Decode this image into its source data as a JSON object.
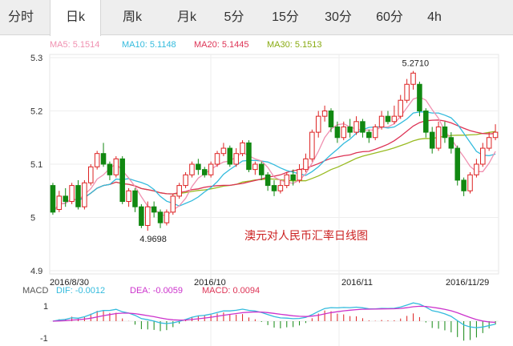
{
  "tabs": [
    {
      "label": "分时",
      "active": false
    },
    {
      "label": "日k",
      "active": true
    },
    {
      "label": "周k",
      "active": false
    },
    {
      "label": "月k",
      "active": false
    },
    {
      "label": "5分",
      "active": false
    },
    {
      "label": "15分",
      "active": false
    },
    {
      "label": "30分",
      "active": false
    },
    {
      "label": "60分",
      "active": false
    },
    {
      "label": "4h",
      "active": false
    }
  ],
  "legend": {
    "ma5": "MA5: 5.1514",
    "ma10": "MA10: 5.1148",
    "ma20": "MA20: 5.1445",
    "ma30": "MA30: 5.1513"
  },
  "macd_legend": {
    "title": "MACD",
    "dif": "DIF: -0.0012",
    "dea": "DEA: -0.0059",
    "macd": "MACD: 0.0094"
  },
  "chart_title": "澳元对人民币汇率日线图",
  "colors": {
    "up": "#dd2222",
    "down": "#118811",
    "ma5": "#f090b0",
    "ma10": "#33bbdd",
    "ma20": "#dd3355",
    "ma30": "#99bb22",
    "dif": "#33bbdd",
    "dea": "#cc33cc"
  },
  "chart_data": {
    "type": "candlestick",
    "y_ticks": [
      "5.3",
      "5.2",
      "5.1",
      "5",
      "4.9"
    ],
    "ylim": [
      4.9,
      5.3
    ],
    "x_labels": [
      "2016/8/30",
      "2016/10",
      "2016/11",
      "2016/11/29"
    ],
    "annotations": {
      "high": "5.2710",
      "low": "4.9698"
    },
    "candles": [
      [
        5.06,
        5.01,
        5.065,
        5.005
      ],
      [
        5.015,
        5.04,
        5.05,
        5.01
      ],
      [
        5.04,
        5.03,
        5.055,
        5.02
      ],
      [
        5.03,
        5.06,
        5.065,
        5.025
      ],
      [
        5.06,
        5.02,
        5.07,
        5.015
      ],
      [
        5.02,
        5.065,
        5.07,
        5.015
      ],
      [
        5.065,
        5.095,
        5.1,
        5.06
      ],
      [
        5.095,
        5.12,
        5.125,
        5.09
      ],
      [
        5.12,
        5.1,
        5.14,
        5.095
      ],
      [
        5.1,
        5.08,
        5.105,
        5.07
      ],
      [
        5.08,
        5.11,
        5.115,
        5.075
      ],
      [
        5.11,
        5.03,
        5.115,
        5.025
      ],
      [
        5.03,
        5.05,
        5.055,
        5.02
      ],
      [
        5.05,
        5.02,
        5.055,
        5.01
      ],
      [
        5.02,
        4.985,
        5.025,
        4.98
      ],
      [
        4.985,
        5.02,
        5.03,
        4.975
      ],
      [
        5.02,
        5.01,
        5.03,
        5.0
      ],
      [
        5.01,
        4.99,
        5.015,
        4.98
      ],
      [
        4.99,
        5.01,
        5.015,
        4.985
      ],
      [
        5.01,
        5.04,
        5.045,
        5.005
      ],
      [
        5.04,
        5.06,
        5.065,
        5.035
      ],
      [
        5.06,
        5.08,
        5.085,
        5.055
      ],
      [
        5.08,
        5.1,
        5.105,
        5.075
      ],
      [
        5.1,
        5.09,
        5.11,
        5.08
      ],
      [
        5.09,
        5.08,
        5.095,
        5.075
      ],
      [
        5.08,
        5.1,
        5.105,
        5.075
      ],
      [
        5.1,
        5.12,
        5.125,
        5.095
      ],
      [
        5.12,
        5.13,
        5.14,
        5.115
      ],
      [
        5.13,
        5.1,
        5.135,
        5.095
      ],
      [
        5.1,
        5.12,
        5.13,
        5.095
      ],
      [
        5.12,
        5.14,
        5.145,
        5.115
      ],
      [
        5.14,
        5.09,
        5.145,
        5.085
      ],
      [
        5.09,
        5.1,
        5.105,
        5.08
      ],
      [
        5.1,
        5.08,
        5.105,
        5.07
      ],
      [
        5.08,
        5.06,
        5.085,
        5.05
      ],
      [
        5.06,
        5.05,
        5.07,
        5.04
      ],
      [
        5.05,
        5.06,
        5.07,
        5.045
      ],
      [
        5.06,
        5.08,
        5.085,
        5.055
      ],
      [
        5.08,
        5.07,
        5.09,
        5.06
      ],
      [
        5.07,
        5.09,
        5.1,
        5.065
      ],
      [
        5.09,
        5.11,
        5.12,
        5.085
      ],
      [
        5.11,
        5.16,
        5.165,
        5.105
      ],
      [
        5.16,
        5.19,
        5.2,
        5.15
      ],
      [
        5.19,
        5.2,
        5.21,
        5.18
      ],
      [
        5.2,
        5.17,
        5.205,
        5.16
      ],
      [
        5.17,
        5.15,
        5.18,
        5.14
      ],
      [
        5.15,
        5.17,
        5.18,
        5.145
      ],
      [
        5.17,
        5.16,
        5.185,
        5.15
      ],
      [
        5.16,
        5.18,
        5.19,
        5.155
      ],
      [
        5.18,
        5.16,
        5.185,
        5.15
      ],
      [
        5.16,
        5.15,
        5.165,
        5.14
      ],
      [
        5.15,
        5.17,
        5.175,
        5.145
      ],
      [
        5.17,
        5.19,
        5.2,
        5.165
      ],
      [
        5.19,
        5.18,
        5.2,
        5.175
      ],
      [
        5.18,
        5.19,
        5.21,
        5.175
      ],
      [
        5.19,
        5.22,
        5.23,
        5.185
      ],
      [
        5.22,
        5.25,
        5.26,
        5.215
      ],
      [
        5.25,
        5.271,
        5.275,
        5.24
      ],
      [
        5.25,
        5.2,
        5.255,
        5.19
      ],
      [
        5.2,
        5.16,
        5.205,
        5.15
      ],
      [
        5.16,
        5.13,
        5.17,
        5.12
      ],
      [
        5.13,
        5.17,
        5.18,
        5.125
      ],
      [
        5.17,
        5.15,
        5.18,
        5.14
      ],
      [
        5.15,
        5.13,
        5.16,
        5.12
      ],
      [
        5.13,
        5.07,
        5.135,
        5.06
      ],
      [
        5.07,
        5.05,
        5.075,
        5.04
      ],
      [
        5.05,
        5.08,
        5.085,
        5.045
      ],
      [
        5.08,
        5.1,
        5.11,
        5.075
      ],
      [
        5.1,
        5.13,
        5.14,
        5.095
      ],
      [
        5.13,
        5.15,
        5.16,
        5.125
      ],
      [
        5.15,
        5.16,
        5.175,
        5.145
      ]
    ]
  }
}
